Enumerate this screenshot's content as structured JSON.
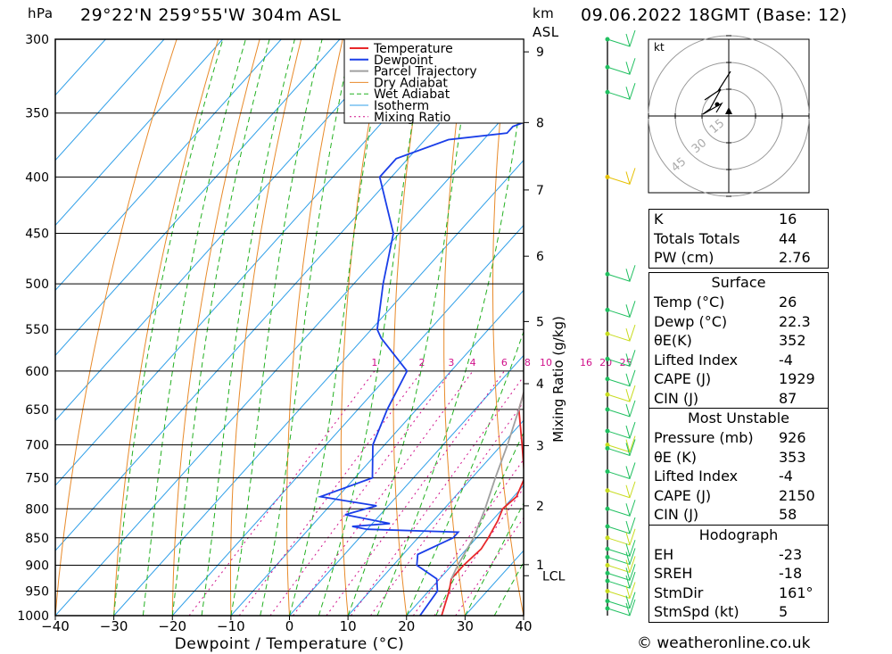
{
  "header": {
    "units_hpa": "hPa",
    "location": "29°22'N  259°55'W  304m  ASL",
    "units_km": "km",
    "units_asl": "ASL",
    "datetime": "09.06.2022  18GMT  (Base: 12)"
  },
  "chart_data": {
    "type": "line",
    "subtype": "skew-T log-P diagram",
    "xlabel": "Dewpoint / Temperature (°C)",
    "ylabel": "hPa",
    "xlim": [
      -40,
      40
    ],
    "ylim": [
      1000,
      300
    ],
    "x_ticks": [
      -40,
      -30,
      -20,
      -10,
      0,
      10,
      20,
      30,
      40
    ],
    "pressure_ticks": [
      300,
      350,
      400,
      450,
      500,
      550,
      600,
      650,
      700,
      750,
      800,
      850,
      900,
      950,
      1000
    ],
    "km_ticks": [
      {
        "label": "1",
        "p": 899
      },
      {
        "label": "2",
        "p": 795
      },
      {
        "label": "3",
        "p": 701
      },
      {
        "label": "4",
        "p": 616
      },
      {
        "label": "5",
        "p": 541
      },
      {
        "label": "6",
        "p": 472
      },
      {
        "label": "7",
        "p": 411
      },
      {
        "label": "8",
        "p": 357
      },
      {
        "label": "9",
        "p": 308
      }
    ],
    "lcl": {
      "label": "LCL",
      "p": 920
    },
    "mixing_ratio_label": "Mixing Ratio (g/kg)",
    "mixing_ratio_values": [
      "1",
      "2",
      "3",
      "4",
      "6",
      "8",
      "10",
      "16",
      "20",
      "25"
    ],
    "legend": [
      "Temperature",
      "Dewpoint",
      "Parcel Trajectory",
      "Dry Adiabat",
      "Wet Adiabat",
      "Isotherm",
      "Mixing Ratio"
    ],
    "legend_position": "top-right",
    "colors": {
      "temperature": "#e8282a",
      "dewpoint": "#1a3ee8",
      "parcel": "#a0a0a0",
      "dry_adiabat": "#e88a2a",
      "wet_adiabat": "#22b020",
      "isotherm": "#2f9fe8",
      "mixing_ratio": "#d0108a"
    },
    "series": [
      {
        "name": "Temperature",
        "points": [
          [
            1000,
            26
          ],
          [
            950,
            23.5
          ],
          [
            926,
            22
          ],
          [
            900,
            22
          ],
          [
            870,
            22.5
          ],
          [
            850,
            22
          ],
          [
            820,
            21
          ],
          [
            800,
            20
          ],
          [
            780,
            20.5
          ],
          [
            750,
            19
          ],
          [
            700,
            13.5
          ],
          [
            650,
            7.5
          ],
          [
            600,
            3.5
          ],
          [
            560,
            0.5
          ],
          [
            550,
            -1
          ],
          [
            500,
            -5
          ],
          [
            450,
            -11
          ],
          [
            400,
            -17
          ],
          [
            370,
            -22
          ],
          [
            350,
            -27
          ],
          [
            320,
            -31
          ],
          [
            300,
            -36
          ]
        ]
      },
      {
        "name": "Dewpoint",
        "points": [
          [
            1000,
            22.3
          ],
          [
            950,
            21.5
          ],
          [
            926,
            19.5
          ],
          [
            900,
            14
          ],
          [
            880,
            12.5
          ],
          [
            850,
            16
          ],
          [
            840,
            16
          ],
          [
            835,
            0
          ],
          [
            830,
            -3
          ],
          [
            825,
            3
          ],
          [
            810,
            -6
          ],
          [
            795,
            -2
          ],
          [
            780,
            -13
          ],
          [
            750,
            -7
          ],
          [
            700,
            -12
          ],
          [
            650,
            -15
          ],
          [
            600,
            -17.5
          ],
          [
            560,
            -27
          ],
          [
            550,
            -29
          ],
          [
            500,
            -35
          ],
          [
            450,
            -41
          ],
          [
            400,
            -52
          ],
          [
            385,
            -52
          ],
          [
            370,
            -46
          ],
          [
            365,
            -37
          ],
          [
            360,
            -37
          ],
          [
            355,
            -35
          ],
          [
            345,
            -36
          ],
          [
            320,
            -44
          ],
          [
            315,
            -44
          ],
          [
            305,
            -55
          ],
          [
            300,
            -52
          ]
        ]
      },
      {
        "name": "Parcel Trajectory",
        "points": [
          [
            926,
            22
          ],
          [
            900,
            21
          ],
          [
            850,
            19.5
          ],
          [
            800,
            17
          ],
          [
            750,
            14
          ],
          [
            700,
            11
          ],
          [
            650,
            7.5
          ],
          [
            600,
            3.5
          ],
          [
            550,
            -1
          ],
          [
            500,
            -6
          ],
          [
            450,
            -12
          ],
          [
            400,
            -19
          ],
          [
            370,
            -24
          ]
        ]
      }
    ],
    "hodograph_label": "kt",
    "hodograph_rings": [
      "15",
      "30",
      "45"
    ]
  },
  "indices": {
    "k_label": "K",
    "k": "16",
    "tt_label": "Totals Totals",
    "tt": "44",
    "pw_label": "PW (cm)",
    "pw": "2.76"
  },
  "surface": {
    "title": "Surface",
    "temp_label": "Temp (°C)",
    "temp": "26",
    "dewp_label": "Dewp (°C)",
    "dewp": "22.3",
    "theta_label": "θE(K)",
    "theta": "352",
    "li_label": "Lifted Index",
    "li": "-4",
    "cape_label": "CAPE (J)",
    "cape": "1929",
    "cin_label": "CIN (J)",
    "cin": "87"
  },
  "most_unstable": {
    "title": "Most Unstable",
    "pres_label": "Pressure (mb)",
    "pres": "926",
    "theta_label": "θE (K)",
    "theta": "353",
    "li_label": "Lifted Index",
    "li": "-4",
    "cape_label": "CAPE (J)",
    "cape": "2150",
    "cin_label": "CIN (J)",
    "cin": "58"
  },
  "hodograph": {
    "title": "Hodograph",
    "eh_label": "EH",
    "eh": "-23",
    "sreh_label": "SREH",
    "sreh": "-18",
    "stmdir_label": "StmDir",
    "stmdir": "161°",
    "stmspd_label": "StmSpd (kt)",
    "stmspd": "5"
  },
  "footer": {
    "copyright": "© weatheronline.co.uk"
  }
}
